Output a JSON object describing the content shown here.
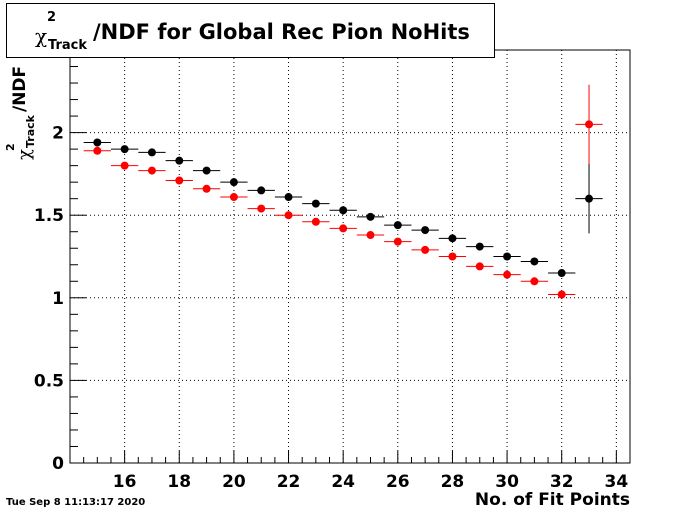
{
  "title": {
    "symbol": "χ",
    "superscript": "2",
    "subscript": "Track",
    "text": "/NDF for Global Rec Pion NoHits"
  },
  "date_stamp": "Tue Sep  8 11:13:17 2020",
  "chart_data": {
    "type": "scatter",
    "xlabel": "No. of Fit Points",
    "ylabel": {
      "symbol": "χ",
      "superscript": "2",
      "subscript": "Track",
      "text": "/NDF"
    },
    "xlim": [
      14.0,
      34.5
    ],
    "ylim": [
      0,
      2.5
    ],
    "xticks": [
      16,
      18,
      20,
      22,
      24,
      26,
      28,
      30,
      32,
      34
    ],
    "yticks": [
      0,
      0.5,
      1,
      1.5,
      2
    ],
    "ytick_labels": [
      "0",
      "0.5",
      "1",
      "1.5",
      "2"
    ],
    "grid": true,
    "series": [
      {
        "color": "#000000",
        "points": [
          {
            "x": 15,
            "y": 1.94,
            "err": 0.01
          },
          {
            "x": 16,
            "y": 1.9,
            "err": 0.01
          },
          {
            "x": 17,
            "y": 1.88,
            "err": 0.01
          },
          {
            "x": 18,
            "y": 1.83,
            "err": 0.01
          },
          {
            "x": 19,
            "y": 1.77,
            "err": 0.01
          },
          {
            "x": 20,
            "y": 1.7,
            "err": 0.01
          },
          {
            "x": 21,
            "y": 1.65,
            "err": 0.01
          },
          {
            "x": 22,
            "y": 1.61,
            "err": 0.01
          },
          {
            "x": 23,
            "y": 1.57,
            "err": 0.01
          },
          {
            "x": 24,
            "y": 1.53,
            "err": 0.01
          },
          {
            "x": 25,
            "y": 1.49,
            "err": 0.01
          },
          {
            "x": 26,
            "y": 1.44,
            "err": 0.01
          },
          {
            "x": 27,
            "y": 1.41,
            "err": 0.01
          },
          {
            "x": 28,
            "y": 1.36,
            "err": 0.01
          },
          {
            "x": 29,
            "y": 1.31,
            "err": 0.01
          },
          {
            "x": 30,
            "y": 1.25,
            "err": 0.01
          },
          {
            "x": 31,
            "y": 1.22,
            "err": 0.01
          },
          {
            "x": 32,
            "y": 1.15,
            "err": 0.01
          },
          {
            "x": 33,
            "y": 1.6,
            "err": 0.21
          }
        ]
      },
      {
        "color": "#ff0000",
        "points": [
          {
            "x": 15,
            "y": 1.89,
            "err": 0.01
          },
          {
            "x": 16,
            "y": 1.8,
            "err": 0.01
          },
          {
            "x": 17,
            "y": 1.77,
            "err": 0.01
          },
          {
            "x": 18,
            "y": 1.71,
            "err": 0.01
          },
          {
            "x": 19,
            "y": 1.66,
            "err": 0.01
          },
          {
            "x": 20,
            "y": 1.61,
            "err": 0.01
          },
          {
            "x": 21,
            "y": 1.54,
            "err": 0.01
          },
          {
            "x": 22,
            "y": 1.5,
            "err": 0.01
          },
          {
            "x": 23,
            "y": 1.46,
            "err": 0.01
          },
          {
            "x": 24,
            "y": 1.42,
            "err": 0.01
          },
          {
            "x": 25,
            "y": 1.38,
            "err": 0.01
          },
          {
            "x": 26,
            "y": 1.34,
            "err": 0.01
          },
          {
            "x": 27,
            "y": 1.29,
            "err": 0.01
          },
          {
            "x": 28,
            "y": 1.25,
            "err": 0.01
          },
          {
            "x": 29,
            "y": 1.19,
            "err": 0.01
          },
          {
            "x": 30,
            "y": 1.14,
            "err": 0.01
          },
          {
            "x": 31,
            "y": 1.1,
            "err": 0.01
          },
          {
            "x": 32,
            "y": 1.02,
            "err": 0.01
          },
          {
            "x": 33,
            "y": 2.05,
            "err": 0.24
          }
        ]
      }
    ]
  }
}
